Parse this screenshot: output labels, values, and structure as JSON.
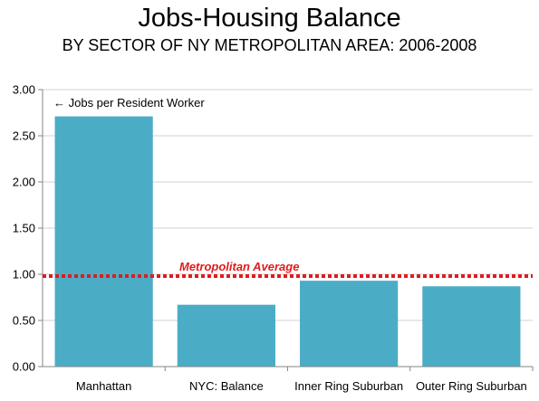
{
  "chart_data": {
    "type": "bar",
    "title": "Jobs-Housing Balance",
    "subtitle": "BY SECTOR OF NY METROPOLITAN AREA: 2006-2008",
    "categories": [
      "Manhattan",
      "NYC: Balance",
      "Inner Ring Suburban",
      "Outer Ring Suburban"
    ],
    "values": [
      2.71,
      0.67,
      0.93,
      0.87
    ],
    "ylim": [
      0,
      3
    ],
    "yticks": [
      "0.00",
      "0.50",
      "1.00",
      "1.50",
      "2.00",
      "2.50",
      "3.00"
    ],
    "xlabel": "",
    "ylabel": "",
    "bar_color": "#4bacc6",
    "annotation": "← Jobs per Resident Worker",
    "reference_line": {
      "label": "Metropolitan Average",
      "value": 0.98,
      "color": "#e31a1c"
    }
  }
}
